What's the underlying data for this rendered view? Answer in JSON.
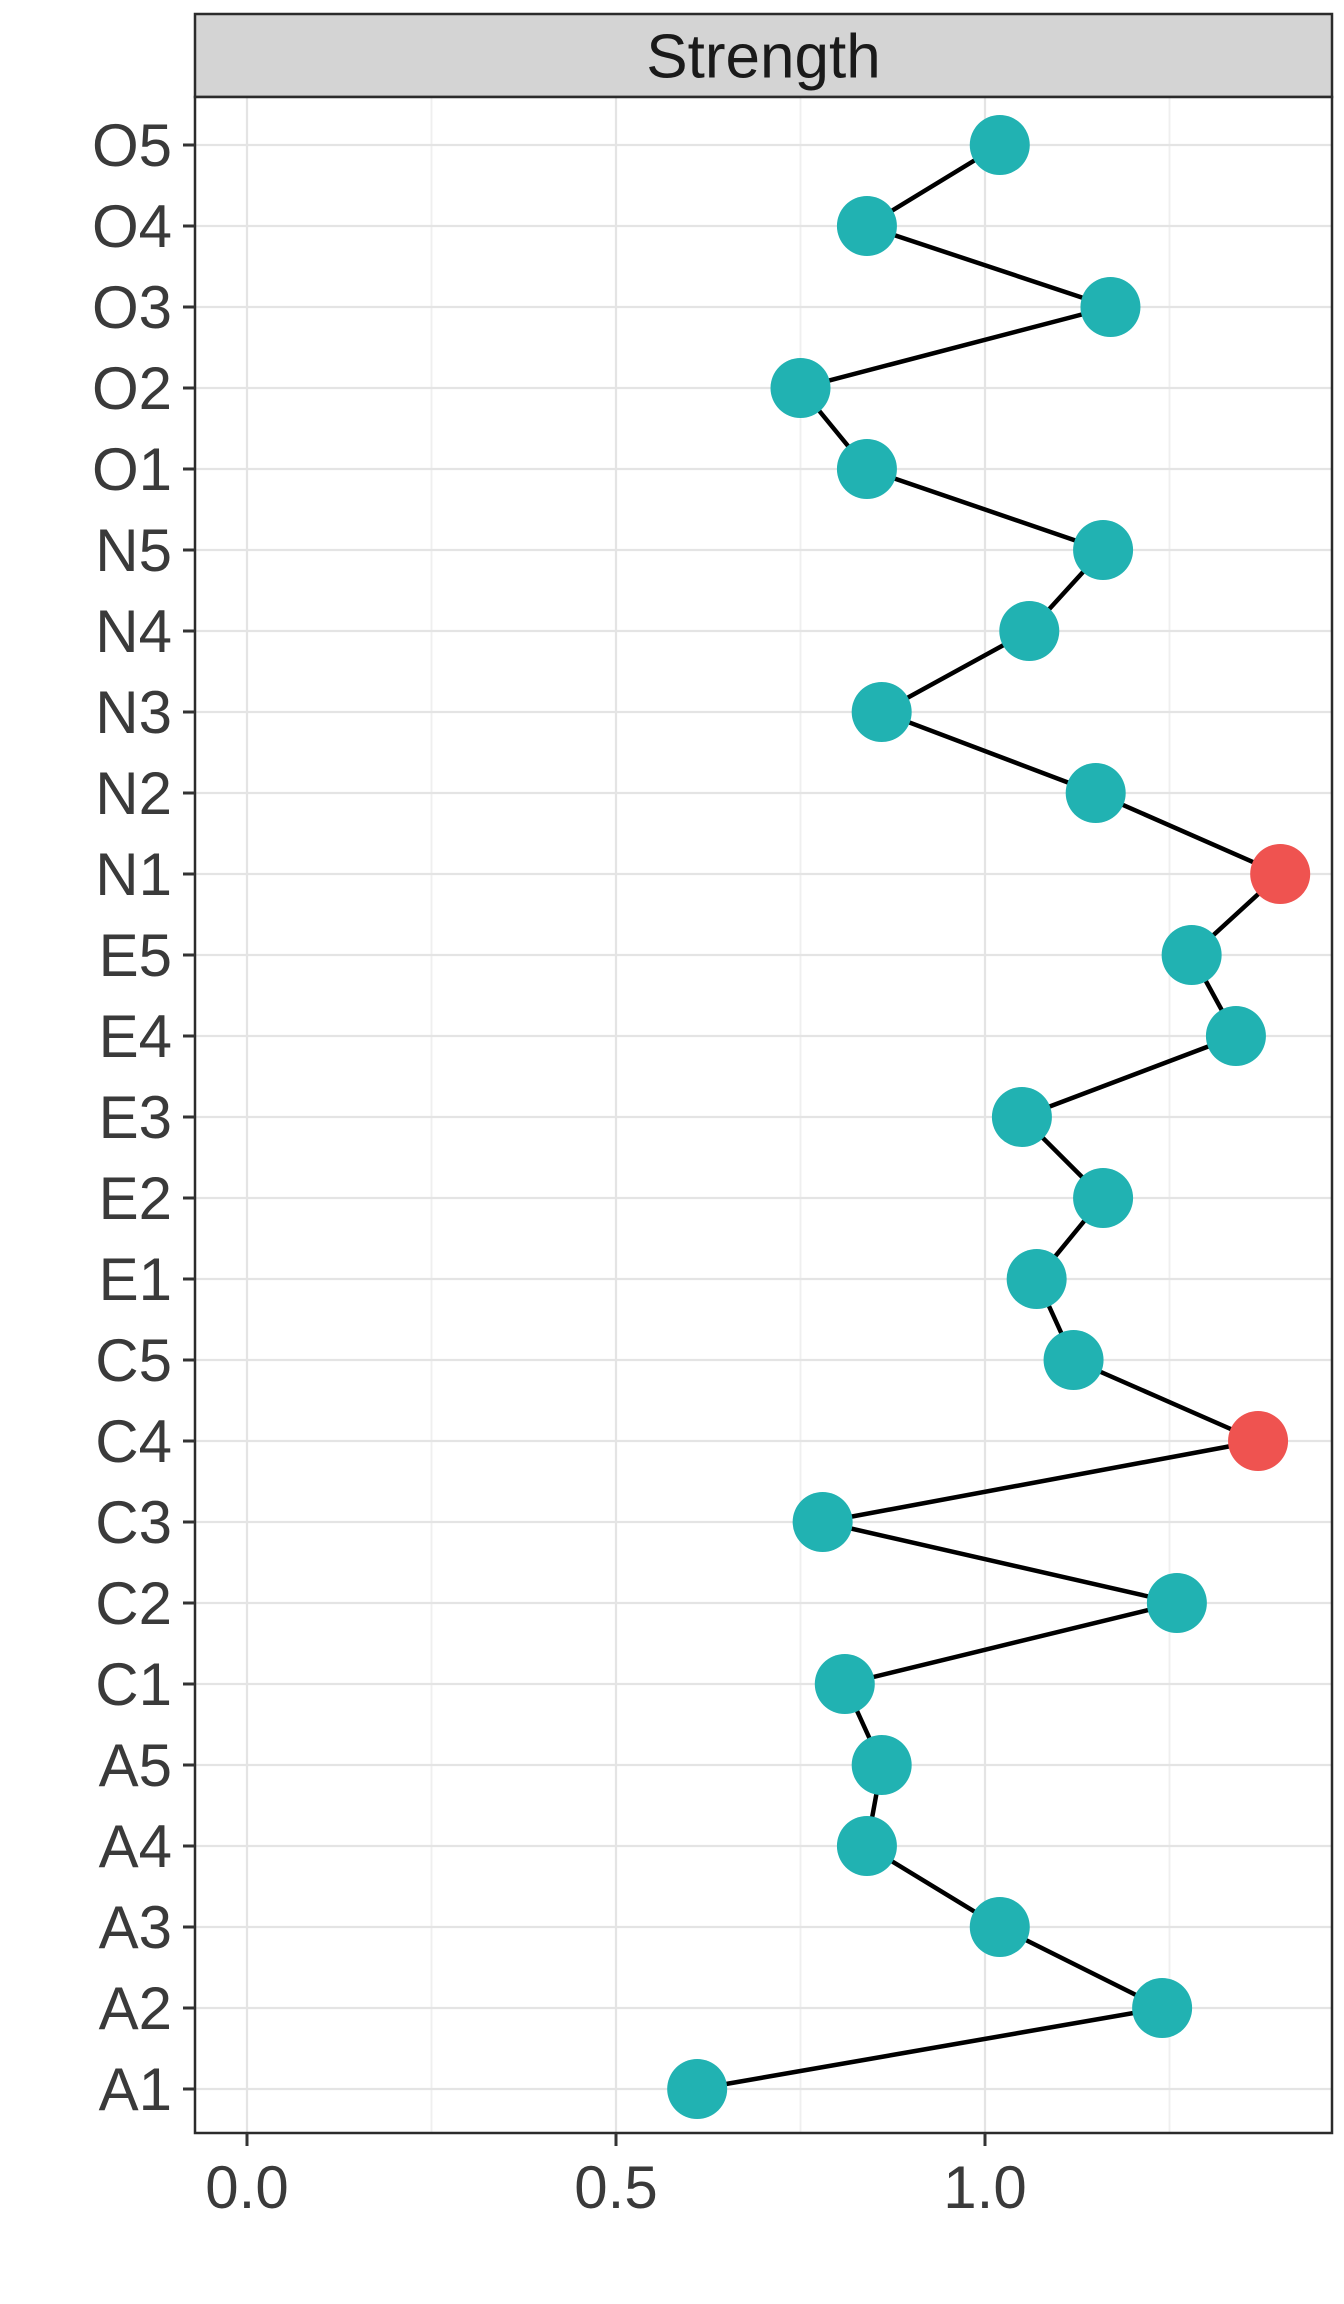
{
  "figure": {
    "facet_strip_title": "Strength"
  },
  "colors": {
    "point_default": "#21B2B2",
    "point_highlight": "#EF5350",
    "line": "#000000",
    "strip_bg": "#D4D4D4",
    "strip_border": "#2B2B2B",
    "panel_border": "#2B2B2B",
    "panel_bg": "#FFFFFF",
    "grid_major": "#E4E4E4",
    "grid_minor": "#EFEFEF",
    "axis_text": "#3A3A3A",
    "tick_mark": "#333333",
    "strip_text": "#1A1A1A"
  },
  "chart_data": {
    "type": "scatter",
    "subtype": "connected-dot-plot",
    "orientation": "horizontal",
    "title": "Strength",
    "xlabel": "",
    "ylabel": "",
    "legend": "none",
    "grid": "on",
    "categories": [
      "O5",
      "O4",
      "O3",
      "O2",
      "O1",
      "N5",
      "N4",
      "N3",
      "N2",
      "N1",
      "E5",
      "E4",
      "E3",
      "E2",
      "E1",
      "C5",
      "C4",
      "C3",
      "C2",
      "C1",
      "A5",
      "A4",
      "A3",
      "A2",
      "A1"
    ],
    "values": [
      1.02,
      0.84,
      1.17,
      0.75,
      0.84,
      1.16,
      1.06,
      0.86,
      1.15,
      1.4,
      1.28,
      1.34,
      1.05,
      1.16,
      1.07,
      1.12,
      1.37,
      0.78,
      1.26,
      0.81,
      0.86,
      0.84,
      1.02,
      1.24,
      0.61
    ],
    "highlighted_categories": [
      "N1",
      "C4"
    ],
    "points": [
      {
        "label": "O5",
        "value": 1.02,
        "highlight": false
      },
      {
        "label": "O4",
        "value": 0.84,
        "highlight": false
      },
      {
        "label": "O3",
        "value": 1.17,
        "highlight": false
      },
      {
        "label": "O2",
        "value": 0.75,
        "highlight": false
      },
      {
        "label": "O1",
        "value": 0.84,
        "highlight": false
      },
      {
        "label": "N5",
        "value": 1.16,
        "highlight": false
      },
      {
        "label": "N4",
        "value": 1.06,
        "highlight": false
      },
      {
        "label": "N3",
        "value": 0.86,
        "highlight": false
      },
      {
        "label": "N2",
        "value": 1.15,
        "highlight": false
      },
      {
        "label": "N1",
        "value": 1.4,
        "highlight": true
      },
      {
        "label": "E5",
        "value": 1.28,
        "highlight": false
      },
      {
        "label": "E4",
        "value": 1.34,
        "highlight": false
      },
      {
        "label": "E3",
        "value": 1.05,
        "highlight": false
      },
      {
        "label": "E2",
        "value": 1.16,
        "highlight": false
      },
      {
        "label": "E1",
        "value": 1.07,
        "highlight": false
      },
      {
        "label": "C5",
        "value": 1.12,
        "highlight": false
      },
      {
        "label": "C4",
        "value": 1.37,
        "highlight": true
      },
      {
        "label": "C3",
        "value": 0.78,
        "highlight": false
      },
      {
        "label": "C2",
        "value": 1.26,
        "highlight": false
      },
      {
        "label": "C1",
        "value": 0.81,
        "highlight": false
      },
      {
        "label": "A5",
        "value": 0.86,
        "highlight": false
      },
      {
        "label": "A4",
        "value": 0.84,
        "highlight": false
      },
      {
        "label": "A3",
        "value": 1.02,
        "highlight": false
      },
      {
        "label": "A2",
        "value": 1.24,
        "highlight": false
      },
      {
        "label": "A1",
        "value": 0.61,
        "highlight": false
      }
    ],
    "x_axis": {
      "tick_values": [
        0.0,
        0.5,
        1.0
      ],
      "tick_labels": [
        "0.0",
        "0.5",
        "1.0"
      ],
      "minor_tick_values": [
        0.25,
        0.75,
        1.25
      ],
      "range": [
        -0.07,
        1.47
      ]
    }
  }
}
